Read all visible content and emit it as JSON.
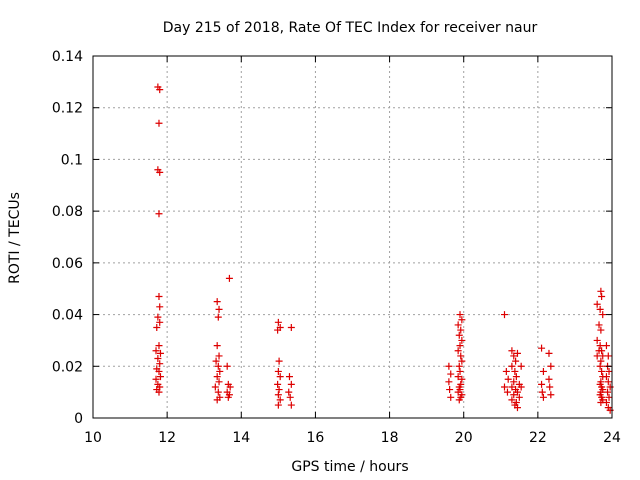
{
  "chart_data": {
    "type": "scatter",
    "title": "Day 215 of 2018, Rate Of TEC Index for receiver naur",
    "xlabel": "GPS time / hours",
    "ylabel": "ROTI / TECUs",
    "xlim": [
      10,
      24
    ],
    "ylim": [
      0,
      0.14
    ],
    "x_ticks": [
      "10",
      "12",
      "14",
      "16",
      "18",
      "20",
      "22",
      "24"
    ],
    "y_ticks": [
      "0",
      "0.02",
      "0.04",
      "0.06",
      "0.08",
      "0.1",
      "0.12",
      "0.14"
    ],
    "grid": true,
    "marker": "+",
    "series": [
      {
        "name": "ROTI",
        "color": "#dd0000",
        "points": [
          [
            11.75,
            0.128
          ],
          [
            11.8,
            0.127
          ],
          [
            11.78,
            0.114
          ],
          [
            11.75,
            0.096
          ],
          [
            11.8,
            0.095
          ],
          [
            11.78,
            0.079
          ],
          [
            11.78,
            0.047
          ],
          [
            11.8,
            0.043
          ],
          [
            11.75,
            0.039
          ],
          [
            11.8,
            0.037
          ],
          [
            11.72,
            0.035
          ],
          [
            11.78,
            0.028
          ],
          [
            11.7,
            0.026
          ],
          [
            11.82,
            0.025
          ],
          [
            11.75,
            0.023
          ],
          [
            11.8,
            0.021
          ],
          [
            11.72,
            0.019
          ],
          [
            11.78,
            0.018
          ],
          [
            11.82,
            0.016
          ],
          [
            11.7,
            0.015
          ],
          [
            11.75,
            0.013
          ],
          [
            11.8,
            0.012
          ],
          [
            11.72,
            0.011
          ],
          [
            11.78,
            0.01
          ],
          [
            13.35,
            0.045
          ],
          [
            13.4,
            0.042
          ],
          [
            13.38,
            0.039
          ],
          [
            13.35,
            0.028
          ],
          [
            13.4,
            0.024
          ],
          [
            13.32,
            0.022
          ],
          [
            13.38,
            0.02
          ],
          [
            13.42,
            0.018
          ],
          [
            13.35,
            0.016
          ],
          [
            13.4,
            0.014
          ],
          [
            13.3,
            0.012
          ],
          [
            13.38,
            0.01
          ],
          [
            13.42,
            0.008
          ],
          [
            13.35,
            0.007
          ],
          [
            13.68,
            0.054
          ],
          [
            13.62,
            0.02
          ],
          [
            13.65,
            0.013
          ],
          [
            13.7,
            0.012
          ],
          [
            13.62,
            0.01
          ],
          [
            13.68,
            0.009
          ],
          [
            13.65,
            0.008
          ],
          [
            15.0,
            0.037
          ],
          [
            15.05,
            0.035
          ],
          [
            14.98,
            0.034
          ],
          [
            15.02,
            0.022
          ],
          [
            15.0,
            0.018
          ],
          [
            15.05,
            0.016
          ],
          [
            14.98,
            0.013
          ],
          [
            15.02,
            0.011
          ],
          [
            15.0,
            0.009
          ],
          [
            15.05,
            0.007
          ],
          [
            15.0,
            0.005
          ],
          [
            15.35,
            0.035
          ],
          [
            15.3,
            0.016
          ],
          [
            15.35,
            0.013
          ],
          [
            15.28,
            0.01
          ],
          [
            15.32,
            0.008
          ],
          [
            15.35,
            0.005
          ],
          [
            19.6,
            0.02
          ],
          [
            19.65,
            0.017
          ],
          [
            19.6,
            0.014
          ],
          [
            19.62,
            0.011
          ],
          [
            19.65,
            0.008
          ],
          [
            19.9,
            0.04
          ],
          [
            19.95,
            0.038
          ],
          [
            19.85,
            0.036
          ],
          [
            19.92,
            0.034
          ],
          [
            19.88,
            0.032
          ],
          [
            19.95,
            0.03
          ],
          [
            19.9,
            0.028
          ],
          [
            19.85,
            0.026
          ],
          [
            19.92,
            0.024
          ],
          [
            19.95,
            0.022
          ],
          [
            19.88,
            0.02
          ],
          [
            19.9,
            0.018
          ],
          [
            19.85,
            0.016
          ],
          [
            19.95,
            0.015
          ],
          [
            19.92,
            0.013
          ],
          [
            19.88,
            0.012
          ],
          [
            19.9,
            0.011
          ],
          [
            19.85,
            0.01
          ],
          [
            19.95,
            0.009
          ],
          [
            19.92,
            0.008
          ],
          [
            19.88,
            0.007
          ],
          [
            21.1,
            0.04
          ],
          [
            21.15,
            0.018
          ],
          [
            21.2,
            0.015
          ],
          [
            21.1,
            0.012
          ],
          [
            21.18,
            0.01
          ],
          [
            21.3,
            0.026
          ],
          [
            21.35,
            0.024
          ],
          [
            21.4,
            0.022
          ],
          [
            21.45,
            0.025
          ],
          [
            21.3,
            0.02
          ],
          [
            21.38,
            0.018
          ],
          [
            21.42,
            0.016
          ],
          [
            21.35,
            0.014
          ],
          [
            21.5,
            0.013
          ],
          [
            21.3,
            0.012
          ],
          [
            21.4,
            0.011
          ],
          [
            21.45,
            0.01
          ],
          [
            21.35,
            0.009
          ],
          [
            21.5,
            0.008
          ],
          [
            21.3,
            0.007
          ],
          [
            21.42,
            0.006
          ],
          [
            21.38,
            0.005
          ],
          [
            21.45,
            0.004
          ],
          [
            21.55,
            0.02
          ],
          [
            21.55,
            0.012
          ],
          [
            22.1,
            0.027
          ],
          [
            22.15,
            0.018
          ],
          [
            22.1,
            0.013
          ],
          [
            22.12,
            0.01
          ],
          [
            22.15,
            0.008
          ],
          [
            22.3,
            0.025
          ],
          [
            22.35,
            0.02
          ],
          [
            22.3,
            0.015
          ],
          [
            22.32,
            0.012
          ],
          [
            22.35,
            0.009
          ],
          [
            23.6,
            0.044
          ],
          [
            23.65,
            0.036
          ],
          [
            23.6,
            0.03
          ],
          [
            23.65,
            0.026
          ],
          [
            23.6,
            0.024
          ],
          [
            23.7,
            0.049
          ],
          [
            23.72,
            0.047
          ],
          [
            23.68,
            0.042
          ],
          [
            23.75,
            0.04
          ],
          [
            23.7,
            0.034
          ],
          [
            23.68,
            0.028
          ],
          [
            23.72,
            0.026
          ],
          [
            23.75,
            0.024
          ],
          [
            23.7,
            0.022
          ],
          [
            23.68,
            0.02
          ],
          [
            23.72,
            0.018
          ],
          [
            23.75,
            0.016
          ],
          [
            23.7,
            0.014
          ],
          [
            23.68,
            0.013
          ],
          [
            23.72,
            0.012
          ],
          [
            23.75,
            0.011
          ],
          [
            23.7,
            0.01
          ],
          [
            23.68,
            0.009
          ],
          [
            23.72,
            0.008
          ],
          [
            23.75,
            0.007
          ],
          [
            23.7,
            0.006
          ],
          [
            23.85,
            0.028
          ],
          [
            23.9,
            0.024
          ],
          [
            23.88,
            0.02
          ],
          [
            23.92,
            0.018
          ],
          [
            23.85,
            0.016
          ],
          [
            23.9,
            0.014
          ],
          [
            23.95,
            0.012
          ],
          [
            23.88,
            0.01
          ],
          [
            23.92,
            0.008
          ],
          [
            23.85,
            0.006
          ],
          [
            23.9,
            0.004
          ],
          [
            23.95,
            0.003
          ]
        ]
      }
    ]
  }
}
